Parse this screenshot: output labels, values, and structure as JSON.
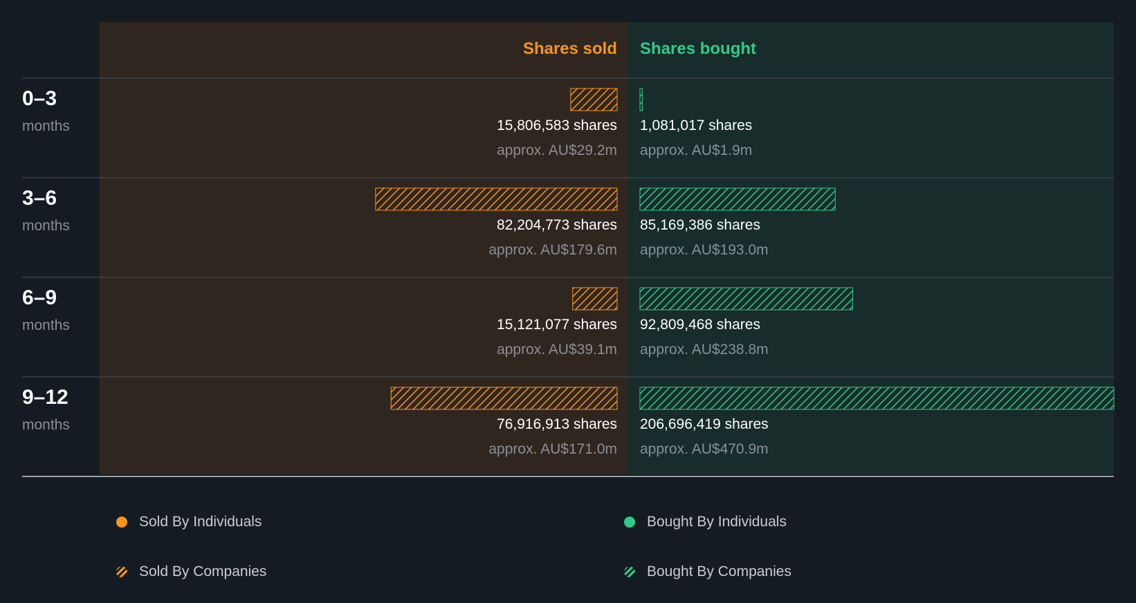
{
  "colors": {
    "background": "#151b23",
    "sold_panel": "#302620",
    "bought_panel": "#172c2b",
    "sold": "#f7961c",
    "bought": "#2ecc87",
    "text_primary": "#ffffff",
    "text_secondary": "#8a8f96",
    "divider": "#3a4048"
  },
  "chart_data": {
    "type": "bar",
    "orientation": "horizontal-diverging",
    "headers": {
      "sold": "Shares sold",
      "bought": "Shares bought"
    },
    "categories": [
      {
        "range": "0–3",
        "unit": "months"
      },
      {
        "range": "3–6",
        "unit": "months"
      },
      {
        "range": "6–9",
        "unit": "months"
      },
      {
        "range": "9–12",
        "unit": "months"
      }
    ],
    "series": [
      {
        "name": "Shares sold",
        "side": "sold",
        "values": [
          15806583,
          82204773,
          15121077,
          76916913
        ],
        "shares_labels": [
          "15,806,583 shares",
          "82,204,773 shares",
          "15,121,077 shares",
          "76,916,913 shares"
        ],
        "value_labels": [
          "approx. AU$29.2m",
          "approx. AU$179.6m",
          "approx. AU$39.1m",
          "approx. AU$171.0m"
        ]
      },
      {
        "name": "Shares bought",
        "side": "bought",
        "values": [
          1081017,
          85169386,
          92809468,
          206696419
        ],
        "shares_labels": [
          "1,081,017 shares",
          "85,169,386 shares",
          "92,809,468 shares",
          "206,696,419 shares"
        ],
        "value_labels": [
          "approx. AU$1.9m",
          "approx. AU$193.0m",
          "approx. AU$238.8m",
          "approx. AU$470.9m"
        ]
      }
    ],
    "xlim": [
      0,
      206696419
    ],
    "legend": [
      {
        "label": "Sold By Individuals",
        "side": "sold",
        "style": "solid"
      },
      {
        "label": "Bought By Individuals",
        "side": "bought",
        "style": "solid"
      },
      {
        "label": "Sold By Companies",
        "side": "sold",
        "style": "hatched"
      },
      {
        "label": "Bought By Companies",
        "side": "bought",
        "style": "hatched"
      }
    ],
    "legend_position": "bottom"
  }
}
